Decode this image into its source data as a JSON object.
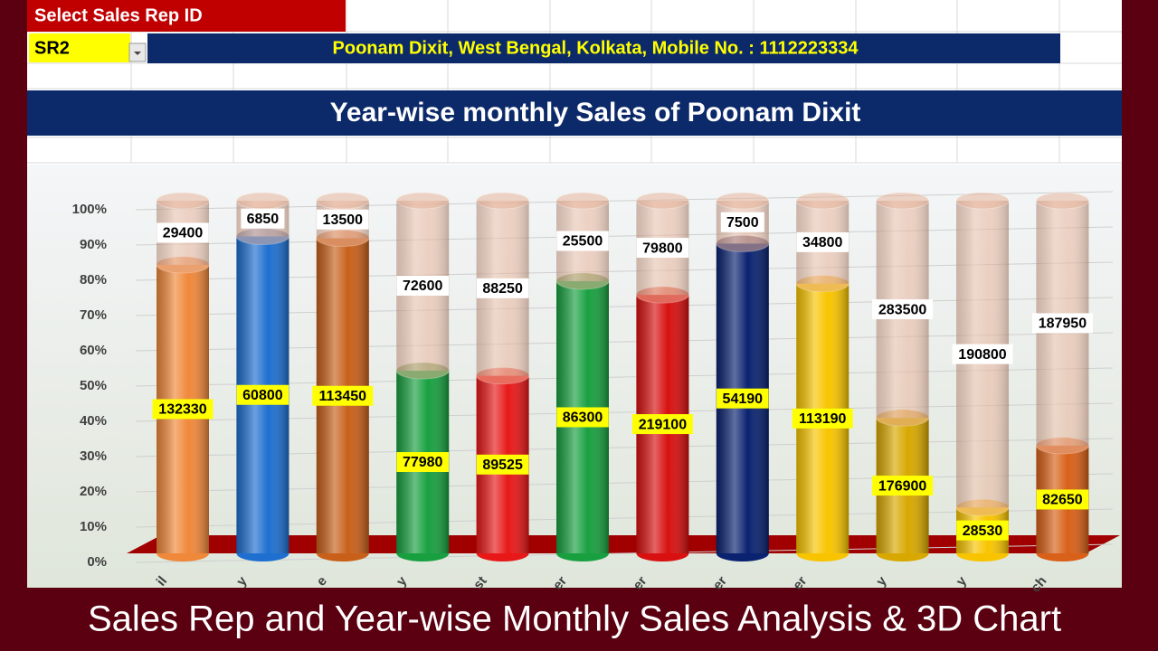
{
  "header": {
    "rep_label": "Select Sales Rep ID",
    "rep_id": "SR2",
    "rep_info": "Poonam Dixit, West Bengal, Kolkata, Mobile No. : 1112223334"
  },
  "chart_data": {
    "type": "bar",
    "stacking": "percent",
    "title": "Year-wise monthly Sales of Poonam Dixit",
    "categories": [
      "il",
      "y",
      "e",
      "y",
      "st",
      "er",
      "er",
      "er",
      "er",
      "y",
      "y",
      "ch"
    ],
    "series": [
      {
        "colors": [
          "#f0883a",
          "#1e6fd0",
          "#c8601a",
          "#18a040",
          "#e81818",
          "#18a040",
          "#d81010",
          "#0a2270",
          "#f8c400",
          "#d8a800",
          "#f8c400",
          "#d86018"
        ],
        "values": [
          132330,
          60800,
          113450,
          77980,
          89525,
          86300,
          219100,
          54190,
          113190,
          176900,
          28530,
          82650
        ]
      },
      {
        "color": "#e8b49a",
        "values": [
          29400,
          6850,
          13500,
          72600,
          88250,
          25500,
          79800,
          7500,
          34800,
          283500,
          190800,
          187950
        ]
      }
    ],
    "ylim": [
      0,
      100
    ],
    "yticks": [
      {
        "value": 0,
        "label": "0%"
      },
      {
        "value": 10,
        "label": "10%"
      },
      {
        "value": 20,
        "label": "20%"
      },
      {
        "value": 30,
        "label": "30%"
      },
      {
        "value": 40,
        "label": "40%"
      },
      {
        "value": 50,
        "label": "50%"
      },
      {
        "value": 60,
        "label": "60%"
      },
      {
        "value": 70,
        "label": "70%"
      },
      {
        "value": 80,
        "label": "80%"
      },
      {
        "value": 90,
        "label": "90%"
      },
      {
        "value": 100,
        "label": "100%"
      }
    ],
    "grid": true
  },
  "caption": "Sales Rep and Year-wise Monthly Sales Analysis & 3D Chart"
}
